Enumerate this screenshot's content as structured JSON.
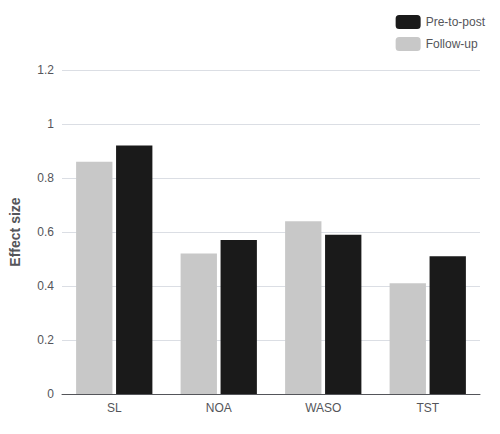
{
  "chart_data": {
    "type": "bar",
    "categories": [
      "SL",
      "NOA",
      "WASO",
      "TST"
    ],
    "series": [
      {
        "name": "Follow-up",
        "color": "#c8c8c8",
        "values": [
          0.86,
          0.52,
          0.64,
          0.41
        ]
      },
      {
        "name": "Pre-to-post",
        "color": "#1a1a1a",
        "values": [
          0.92,
          0.57,
          0.59,
          0.51
        ]
      }
    ],
    "ylabel": "Effect size",
    "ylim": [
      0,
      1.2
    ],
    "yticks": [
      0,
      0.2,
      0.4,
      0.6,
      0.8,
      1,
      1.2
    ],
    "grid": true,
    "legend": "upper right"
  }
}
